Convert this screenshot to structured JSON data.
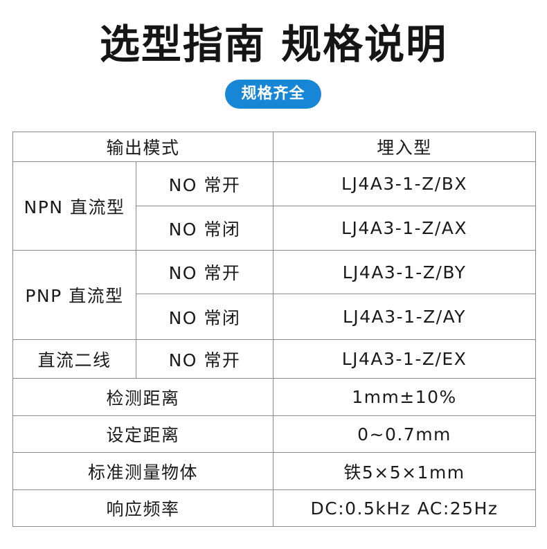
{
  "title": "选型指南 规格说明",
  "badge": "规格齐全",
  "colors": {
    "badge": "#1886d6",
    "border": "#8a8a8a"
  },
  "table": {
    "header": {
      "mode": "输出模式",
      "type": "埋入型"
    },
    "groups": [
      {
        "label": "NPN 直流型",
        "rows": [
          {
            "contact": "NO 常开",
            "model": "LJ4A3-1-Z/BX"
          },
          {
            "contact": "NO 常闭",
            "model": "LJ4A3-1-Z/AX"
          }
        ]
      },
      {
        "label": "PNP 直流型",
        "rows": [
          {
            "contact": "NO 常开",
            "model": "LJ4A3-1-Z/BY"
          },
          {
            "contact": "NO 常闭",
            "model": "LJ4A3-1-Z/AY"
          }
        ]
      },
      {
        "label": "直流二线",
        "rows": [
          {
            "contact": "NO 常开",
            "model": "LJ4A3-1-Z/EX"
          }
        ]
      }
    ],
    "specs": [
      {
        "label": "检测距离",
        "value": "1mm±10%"
      },
      {
        "label": "设定距离",
        "value": "0~0.7mm"
      },
      {
        "label": "标准测量物体",
        "value": "铁5×5×1mm"
      },
      {
        "label": "响应频率",
        "value": "DC:0.5kHz AC:25Hz"
      }
    ]
  }
}
